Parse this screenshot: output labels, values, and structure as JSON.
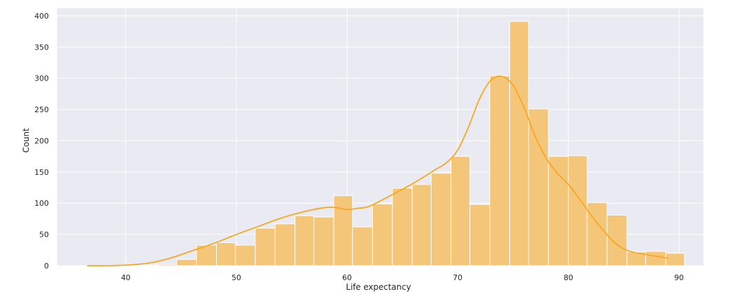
{
  "chart_data": {
    "type": "bar",
    "style": "histogram-with-kde",
    "xlabel": "Life expectancy",
    "ylabel": "Count",
    "xlim": [
      33.8,
      92.2
    ],
    "ylim": [
      0,
      412
    ],
    "xticks": [
      40,
      50,
      60,
      70,
      80,
      90
    ],
    "yticks": [
      0,
      50,
      100,
      150,
      200,
      250,
      300,
      350,
      400
    ],
    "grid": true,
    "colors": {
      "background": "#eaeaf2",
      "grid": "#ffffff",
      "bar_fill": "#f4c679",
      "bar_edge": "#ffffff",
      "kde_line": "#f7a823"
    },
    "bin_width": 1.77,
    "bins": [
      {
        "x0": 37.6,
        "x1": 39.4,
        "count": 0
      },
      {
        "x0": 39.4,
        "x1": 41.1,
        "count": 0
      },
      {
        "x0": 41.1,
        "x1": 42.9,
        "count": 1
      },
      {
        "x0": 42.9,
        "x1": 44.6,
        "count": 2
      },
      {
        "x0": 44.6,
        "x1": 46.4,
        "count": 10
      },
      {
        "x0": 46.4,
        "x1": 48.2,
        "count": 33
      },
      {
        "x0": 48.2,
        "x1": 49.9,
        "count": 37
      },
      {
        "x0": 49.9,
        "x1": 51.7,
        "count": 33
      },
      {
        "x0": 51.7,
        "x1": 53.5,
        "count": 60
      },
      {
        "x0": 53.5,
        "x1": 55.3,
        "count": 67
      },
      {
        "x0": 55.3,
        "x1": 57.0,
        "count": 80
      },
      {
        "x0": 57.0,
        "x1": 58.8,
        "count": 78
      },
      {
        "x0": 58.8,
        "x1": 60.5,
        "count": 112
      },
      {
        "x0": 60.5,
        "x1": 62.3,
        "count": 62
      },
      {
        "x0": 62.3,
        "x1": 64.1,
        "count": 99
      },
      {
        "x0": 64.1,
        "x1": 65.9,
        "count": 124
      },
      {
        "x0": 65.9,
        "x1": 67.6,
        "count": 130
      },
      {
        "x0": 67.6,
        "x1": 69.4,
        "count": 148
      },
      {
        "x0": 69.4,
        "x1": 71.1,
        "count": 175
      },
      {
        "x0": 71.1,
        "x1": 72.9,
        "count": 98
      },
      {
        "x0": 72.9,
        "x1": 74.7,
        "count": 304
      },
      {
        "x0": 74.7,
        "x1": 76.4,
        "count": 391
      },
      {
        "x0": 76.4,
        "x1": 78.2,
        "count": 251
      },
      {
        "x0": 78.2,
        "x1": 80.0,
        "count": 175
      },
      {
        "x0": 80.0,
        "x1": 81.7,
        "count": 176
      },
      {
        "x0": 81.7,
        "x1": 83.5,
        "count": 101
      },
      {
        "x0": 83.5,
        "x1": 85.3,
        "count": 81
      },
      {
        "x0": 85.3,
        "x1": 87.0,
        "count": 22
      },
      {
        "x0": 87.0,
        "x1": 88.8,
        "count": 23
      },
      {
        "x0": 88.8,
        "x1": 90.5,
        "count": 20
      }
    ],
    "kde": {
      "x": [
        36.5,
        38,
        40,
        42,
        44,
        46,
        48,
        50,
        52,
        54,
        56,
        58,
        59,
        60,
        61,
        62,
        64,
        66,
        68,
        69,
        70,
        71,
        72,
        73,
        74,
        75,
        76,
        77,
        78,
        79,
        80,
        81,
        82,
        83,
        84,
        85,
        86,
        87,
        88,
        89
      ],
      "y": [
        0,
        0,
        1,
        4,
        12,
        24,
        36,
        50,
        63,
        76,
        86,
        93,
        93,
        90,
        92,
        95,
        113,
        132,
        154,
        165,
        185,
        223,
        268,
        297,
        303,
        289,
        253,
        207,
        172,
        148,
        130,
        107,
        82,
        60,
        40,
        27,
        21,
        18,
        15,
        12
      ]
    }
  }
}
